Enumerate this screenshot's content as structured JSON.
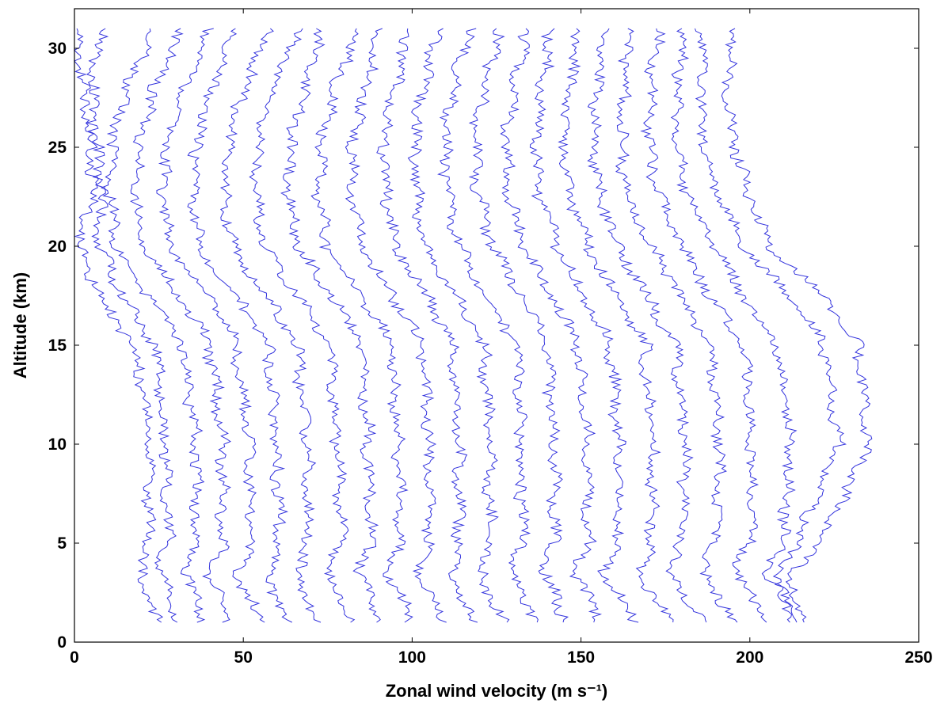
{
  "chart_data": {
    "type": "line",
    "title": "",
    "xlabel": "Zonal wind velocity (m s⁻¹)",
    "ylabel": "Altitude (km)",
    "xlim": [
      0,
      250
    ],
    "ylim": [
      0,
      32
    ],
    "x_ticks": [
      0,
      50,
      100,
      150,
      200,
      250
    ],
    "y_ticks": [
      0,
      5,
      10,
      15,
      20,
      25,
      30
    ],
    "grid": false,
    "legend": "none",
    "line_color": "#3333dd",
    "series": [
      {
        "y": [
          1,
          3.5,
          5,
          10,
          15,
          17,
          20,
          23,
          26,
          28.5,
          31
        ],
        "x": [
          25,
          19,
          22,
          22,
          18,
          9,
          1,
          6,
          4,
          2,
          0
        ]
      },
      {
        "y": [
          1,
          3.5,
          5,
          10,
          15,
          17,
          20,
          23,
          26,
          28.5,
          31
        ],
        "x": [
          31,
          25,
          28,
          27,
          24,
          16,
          7,
          8,
          6,
          5,
          8
        ]
      },
      {
        "y": [
          1,
          3.5,
          5,
          10,
          15,
          17,
          20,
          23,
          26,
          28.5,
          31
        ],
        "x": [
          38,
          33,
          36,
          36,
          32,
          24,
          13,
          10,
          12,
          17,
          24
        ]
      },
      {
        "y": [
          1,
          3.5,
          5,
          10,
          15,
          17,
          20,
          23,
          26,
          28.5,
          31
        ],
        "x": [
          46,
          40,
          44,
          44,
          40,
          33,
          20,
          18,
          20,
          25,
          32
        ]
      },
      {
        "y": [
          1,
          3.5,
          5,
          10,
          15,
          17,
          20,
          23,
          26,
          28.5,
          31
        ],
        "x": [
          55,
          48,
          52,
          52,
          48,
          42,
          28,
          26,
          28,
          34,
          40
        ]
      },
      {
        "y": [
          1,
          3.5,
          5,
          10,
          15,
          17,
          20,
          23,
          26,
          28.5,
          31
        ],
        "x": [
          63,
          57,
          61,
          60,
          57,
          50,
          37,
          35,
          37,
          42,
          48
        ]
      },
      {
        "y": [
          1,
          3.5,
          5,
          10,
          15,
          17,
          20,
          23,
          26,
          28.5,
          31
        ],
        "x": [
          72,
          66,
          69,
          69,
          66,
          59,
          47,
          44,
          46,
          52,
          57
        ]
      },
      {
        "y": [
          1,
          3.5,
          5,
          10,
          15,
          17,
          20,
          23,
          26,
          28.5,
          31
        ],
        "x": [
          82,
          75,
          79,
          78,
          75,
          68,
          56,
          54,
          55,
          60,
          66
        ]
      },
      {
        "y": [
          1,
          3.5,
          5,
          10,
          15,
          17,
          20,
          23,
          26,
          28.5,
          31
        ],
        "x": [
          91,
          84,
          88,
          87,
          85,
          78,
          66,
          63,
          65,
          69,
          73
        ]
      },
      {
        "y": [
          1,
          3.5,
          5,
          10,
          15,
          17,
          20,
          23,
          26,
          28.5,
          31
        ],
        "x": [
          100,
          93,
          96,
          96,
          94,
          87,
          75,
          72,
          74,
          78,
          84
        ]
      },
      {
        "y": [
          1,
          3.5,
          5,
          10,
          15,
          17,
          20,
          23,
          26,
          28.5,
          31
        ],
        "x": [
          109,
          102,
          105,
          105,
          103,
          96,
          85,
          82,
          83,
          87,
          90
        ]
      },
      {
        "y": [
          1,
          3.5,
          5,
          10,
          15,
          17,
          20,
          23,
          26,
          28.5,
          31
        ],
        "x": [
          118,
          111,
          114,
          114,
          112,
          106,
          95,
          92,
          92,
          96,
          99
        ]
      },
      {
        "y": [
          1,
          3.5,
          5,
          10,
          15,
          17,
          20,
          23,
          26,
          28.5,
          31
        ],
        "x": [
          127,
          120,
          123,
          123,
          121,
          115,
          104,
          101,
          101,
          104,
          108
        ]
      },
      {
        "y": [
          1,
          3.5,
          5,
          10,
          15,
          17,
          20,
          23,
          26,
          28.5,
          31
        ],
        "x": [
          137,
          129,
          133,
          132,
          131,
          124,
          114,
          110,
          110,
          113,
          117
        ]
      },
      {
        "y": [
          1,
          3.5,
          5,
          10,
          15,
          17,
          20,
          23,
          26,
          28.5,
          31
        ],
        "x": [
          146,
          139,
          142,
          142,
          140,
          134,
          124,
          119,
          119,
          122,
          126
        ]
      },
      {
        "y": [
          1,
          3.5,
          5,
          10,
          15,
          17,
          20,
          23,
          26,
          28.5,
          31
        ],
        "x": [
          156,
          148,
          152,
          152,
          149,
          143,
          133,
          128,
          128,
          131,
          134
        ]
      },
      {
        "y": [
          1,
          3.5,
          5,
          10,
          15,
          17,
          20,
          23,
          26,
          28.5,
          31
        ],
        "x": [
          166,
          157,
          161,
          161,
          159,
          152,
          143,
          137,
          137,
          139,
          141
        ]
      },
      {
        "y": [
          1,
          3.5,
          5,
          10,
          15,
          17,
          20,
          23,
          26,
          28.5,
          31
        ],
        "x": [
          176,
          167,
          171,
          171,
          169,
          162,
          152,
          146,
          145,
          147,
          149
        ]
      },
      {
        "y": [
          1,
          3.5,
          5,
          10,
          15,
          17,
          20,
          23,
          26,
          28.5,
          31
        ],
        "x": [
          186,
          176,
          180,
          181,
          178,
          171,
          161,
          155,
          154,
          155,
          157
        ]
      },
      {
        "y": [
          1,
          3.5,
          5,
          10,
          15,
          17,
          20,
          23,
          26,
          28.5,
          31
        ],
        "x": [
          196,
          186,
          190,
          191,
          188,
          181,
          171,
          163,
          162,
          163,
          165
        ]
      },
      {
        "y": [
          1,
          3.5,
          5,
          10,
          15,
          17,
          20,
          23,
          26,
          28.5,
          31
        ],
        "x": [
          206,
          195,
          200,
          201,
          198,
          190,
          180,
          172,
          170,
          171,
          173
        ]
      },
      {
        "y": [
          1,
          3.5,
          5,
          10,
          15,
          17,
          20,
          23,
          26,
          28.5,
          31
        ],
        "x": [
          214,
          205,
          210,
          212,
          208,
          200,
          189,
          181,
          178,
          179,
          180
        ]
      },
      {
        "y": [
          1,
          3.5,
          5,
          10,
          15,
          17,
          20,
          23,
          26,
          28.5,
          31
        ],
        "x": [
          213,
          208,
          214,
          226,
          222,
          214,
          198,
          190,
          186,
          186,
          186
        ]
      },
      {
        "y": [
          1,
          3.5,
          5,
          10,
          15,
          17,
          20,
          23,
          26,
          28.5,
          31
        ],
        "x": [
          215,
          212,
          221,
          235,
          232,
          224,
          206,
          199,
          194,
          193,
          196
        ]
      }
    ]
  }
}
